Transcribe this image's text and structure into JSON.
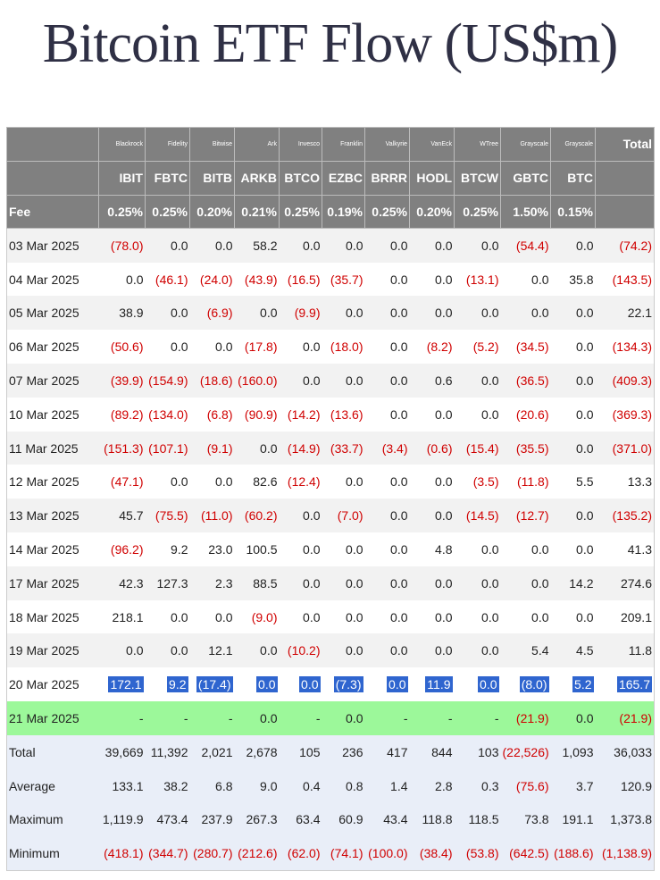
{
  "header": {
    "title": "Bitcoin ETF Flow (US$m)"
  },
  "table": {
    "issuers": [
      "Blackrock",
      "Fidelity",
      "Bitwise",
      "Ark",
      "Invesco",
      "Franklin",
      "Valkyrie",
      "VanEck",
      "WTree",
      "Grayscale",
      "Grayscale"
    ],
    "total_label": "Total",
    "tickers": [
      "IBIT",
      "FBTC",
      "BITB",
      "ARKB",
      "BTCO",
      "EZBC",
      "BRRR",
      "HODL",
      "BTCW",
      "GBTC",
      "BTC"
    ],
    "fee_label": "Fee",
    "fees": [
      "0.25%",
      "0.25%",
      "0.20%",
      "0.21%",
      "0.25%",
      "0.19%",
      "0.25%",
      "0.20%",
      "0.25%",
      "1.50%",
      "0.15%"
    ],
    "rows": [
      [
        "03 Mar 2025",
        "(78.0)",
        "0.0",
        "0.0",
        "58.2",
        "0.0",
        "0.0",
        "0.0",
        "0.0",
        "0.0",
        "(54.4)",
        "0.0",
        "(74.2)"
      ],
      [
        "04 Mar 2025",
        "0.0",
        "(46.1)",
        "(24.0)",
        "(43.9)",
        "(16.5)",
        "(35.7)",
        "0.0",
        "0.0",
        "(13.1)",
        "0.0",
        "35.8",
        "(143.5)"
      ],
      [
        "05 Mar 2025",
        "38.9",
        "0.0",
        "(6.9)",
        "0.0",
        "(9.9)",
        "0.0",
        "0.0",
        "0.0",
        "0.0",
        "0.0",
        "0.0",
        "22.1"
      ],
      [
        "06 Mar 2025",
        "(50.6)",
        "0.0",
        "0.0",
        "(17.8)",
        "0.0",
        "(18.0)",
        "0.0",
        "(8.2)",
        "(5.2)",
        "(34.5)",
        "0.0",
        "(134.3)"
      ],
      [
        "07 Mar 2025",
        "(39.9)",
        "(154.9)",
        "(18.6)",
        "(160.0)",
        "0.0",
        "0.0",
        "0.0",
        "0.6",
        "0.0",
        "(36.5)",
        "0.0",
        "(409.3)"
      ],
      [
        "10 Mar 2025",
        "(89.2)",
        "(134.0)",
        "(6.8)",
        "(90.9)",
        "(14.2)",
        "(13.6)",
        "0.0",
        "0.0",
        "0.0",
        "(20.6)",
        "0.0",
        "(369.3)"
      ],
      [
        "11 Mar 2025",
        "(151.3)",
        "(107.1)",
        "(9.1)",
        "0.0",
        "(14.9)",
        "(33.7)",
        "(3.4)",
        "(0.6)",
        "(15.4)",
        "(35.5)",
        "0.0",
        "(371.0)"
      ],
      [
        "12 Mar 2025",
        "(47.1)",
        "0.0",
        "0.0",
        "82.6",
        "(12.4)",
        "0.0",
        "0.0",
        "0.0",
        "(3.5)",
        "(11.8)",
        "5.5",
        "13.3"
      ],
      [
        "13 Mar 2025",
        "45.7",
        "(75.5)",
        "(11.0)",
        "(60.2)",
        "0.0",
        "(7.0)",
        "0.0",
        "0.0",
        "(14.5)",
        "(12.7)",
        "0.0",
        "(135.2)"
      ],
      [
        "14 Mar 2025",
        "(96.2)",
        "9.2",
        "23.0",
        "100.5",
        "0.0",
        "0.0",
        "0.0",
        "4.8",
        "0.0",
        "0.0",
        "0.0",
        "41.3"
      ],
      [
        "17 Mar 2025",
        "42.3",
        "127.3",
        "2.3",
        "88.5",
        "0.0",
        "0.0",
        "0.0",
        "0.0",
        "0.0",
        "0.0",
        "14.2",
        "274.6"
      ],
      [
        "18 Mar 2025",
        "218.1",
        "0.0",
        "0.0",
        "(9.0)",
        "0.0",
        "0.0",
        "0.0",
        "0.0",
        "0.0",
        "0.0",
        "0.0",
        "209.1"
      ],
      [
        "19 Mar 2025",
        "0.0",
        "0.0",
        "12.1",
        "0.0",
        "(10.2)",
        "0.0",
        "0.0",
        "0.0",
        "0.0",
        "5.4",
        "4.5",
        "11.8"
      ],
      [
        "20 Mar 2025",
        "172.1",
        "9.2",
        "(17.4)",
        "0.0",
        "0.0",
        "(7.3)",
        "0.0",
        "11.9",
        "0.0",
        "(8.0)",
        "5.2",
        "165.7"
      ],
      [
        "21 Mar 2025",
        "-",
        "-",
        "-",
        "0.0",
        "-",
        "0.0",
        "-",
        "-",
        "-",
        "(21.9)",
        "0.0",
        "(21.9)"
      ]
    ],
    "stats": [
      [
        "Total",
        "39,669",
        "11,392",
        "2,021",
        "2,678",
        "105",
        "236",
        "417",
        "844",
        "103",
        "(22,526)",
        "1,093",
        "36,033"
      ],
      [
        "Average",
        "133.1",
        "38.2",
        "6.8",
        "9.0",
        "0.4",
        "0.8",
        "1.4",
        "2.8",
        "0.3",
        "(75.6)",
        "3.7",
        "120.9"
      ],
      [
        "Maximum",
        "1,119.9",
        "473.4",
        "237.9",
        "267.3",
        "63.4",
        "60.9",
        "43.4",
        "118.8",
        "118.5",
        "73.8",
        "191.1",
        "1,373.8"
      ],
      [
        "Minimum",
        "(418.1)",
        "(344.7)",
        "(280.7)",
        "(212.6)",
        "(62.0)",
        "(74.1)",
        "(100.0)",
        "(38.4)",
        "(53.8)",
        "(642.5)",
        "(188.6)",
        "(1,138.9)"
      ]
    ]
  }
}
